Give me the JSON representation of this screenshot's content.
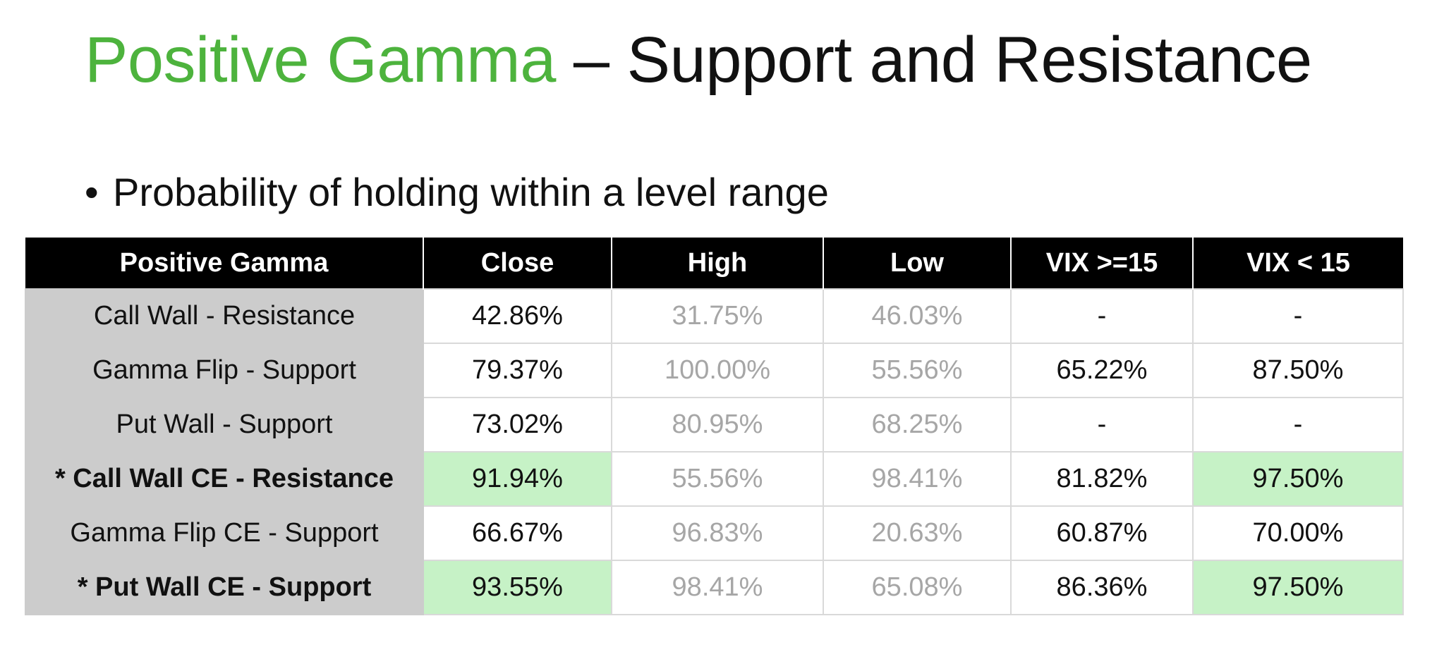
{
  "title": {
    "highlight": "Positive Gamma",
    "rest": " – Support and Resistance"
  },
  "bullet": {
    "symbol": "•",
    "text": "Probability of holding within a level range"
  },
  "colors": {
    "title_green": "#4db33d",
    "header_bg": "#000000",
    "label_bg": "#cccccc",
    "highlight_green": "#c6f2c6",
    "muted_text": "#a6a6a6"
  },
  "table": {
    "headers": [
      "Positive Gamma",
      "Close",
      "High",
      "Low",
      "VIX >=15",
      "VIX < 15"
    ],
    "rows": [
      {
        "label": "Call Wall - Resistance",
        "close": "42.86%",
        "high": "31.75%",
        "low": "46.03%",
        "vix_ge_15": "-",
        "vix_lt_15": "-"
      },
      {
        "label": "Gamma Flip - Support",
        "close": "79.37%",
        "high": "100.00%",
        "low": "55.56%",
        "vix_ge_15": "65.22%",
        "vix_lt_15": "87.50%"
      },
      {
        "label": "Put Wall - Support",
        "close": "73.02%",
        "high": "80.95%",
        "low": "68.25%",
        "vix_ge_15": "-",
        "vix_lt_15": "-"
      },
      {
        "label": "* Call Wall CE - Resistance",
        "close": "91.94%",
        "high": "55.56%",
        "low": "98.41%",
        "vix_ge_15": "81.82%",
        "vix_lt_15": "97.50%"
      },
      {
        "label": "Gamma Flip CE - Support",
        "close": "66.67%",
        "high": "96.83%",
        "low": "20.63%",
        "vix_ge_15": "60.87%",
        "vix_lt_15": "70.00%"
      },
      {
        "label": "* Put Wall CE - Support",
        "close": "93.55%",
        "high": "98.41%",
        "low": "65.08%",
        "vix_ge_15": "86.36%",
        "vix_lt_15": "97.50%"
      }
    ]
  }
}
